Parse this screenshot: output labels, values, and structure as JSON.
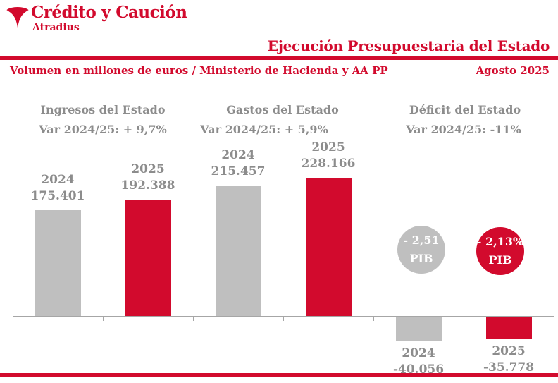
{
  "brand": {
    "name": "Crédito y Caución",
    "subname": "Atradius"
  },
  "header": {
    "title": "Ejecución Presupuestaria del Estado",
    "subtitle": "Volumen en millones de euros  / Ministerio de Hacienda y AA PP",
    "date": "Agosto 2025"
  },
  "colors": {
    "red": "#D20A2D",
    "gray_bar": "#BFBFBF",
    "gray_text": "#8C8C8C",
    "axis": "#A6A6A6"
  },
  "chart_data": {
    "type": "bar",
    "title": "Ejecución Presupuestaria del Estado",
    "unit": "millones de euros",
    "legend_position": "none",
    "grid": false,
    "groups": [
      {
        "title": "Ingresos del Estado",
        "variation": "Var 2024/25: + 9,7%",
        "bars": [
          {
            "year": "2024",
            "label": "175.401",
            "value": 175401,
            "color": "gray"
          },
          {
            "year": "2025",
            "label": "192.388",
            "value": 192388,
            "color": "red"
          }
        ]
      },
      {
        "title": "Gastos del Estado",
        "variation": "Var 2024/25: + 5,9%",
        "bars": [
          {
            "year": "2024",
            "label": "215.457",
            "value": 215457,
            "color": "gray"
          },
          {
            "year": "2025",
            "label": "228.166",
            "value": 228166,
            "color": "red"
          }
        ]
      },
      {
        "title": "Déficit del Estado",
        "variation": "Var 2024/25: -11%",
        "bars": [
          {
            "year": "2024",
            "label": "-40.056",
            "value": -40056,
            "color": "gray"
          },
          {
            "year": "2025",
            "label": "-35.778",
            "value": -35778,
            "color": "red"
          }
        ],
        "badges": [
          {
            "line1": "- 2,51",
            "line2": "PIB",
            "color": "gray"
          },
          {
            "line1": "- 2,13%",
            "line2": "PIB",
            "color": "red"
          }
        ]
      }
    ]
  }
}
